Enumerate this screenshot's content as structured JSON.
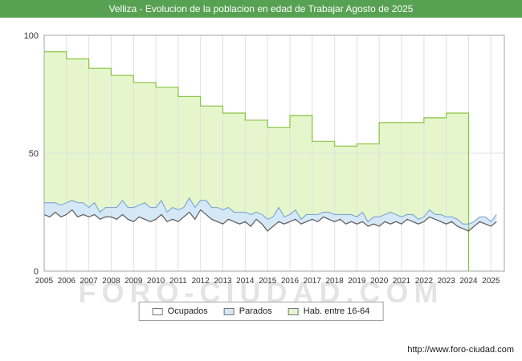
{
  "title": "Velliza - Evolucion de la poblacion en edad de Trabajar Agosto de 2025",
  "watermark": "FORO-CIUDAD.COM",
  "footer_url": "http://www.foro-ciudad.com",
  "colors": {
    "header_bg": "#56a152",
    "header_text": "#ffffff",
    "hab_fill": "#e6f6cc",
    "hab_stroke": "#86c440",
    "par_fill": "#d5e8f7",
    "par_stroke": "#6f9ecf",
    "ocu_fill": "#ffffff",
    "ocu_stroke": "#5a5a5a",
    "grid": "#e0e0e0",
    "frame": "#a6a6a6",
    "text": "#333333"
  },
  "legend": {
    "items": [
      {
        "label": "Ocupados",
        "fill": "#ffffff"
      },
      {
        "label": "Parados",
        "fill": "#d5e8f7"
      },
      {
        "label": "Hab. entre 16-64",
        "fill": "#e6f6cc"
      }
    ]
  },
  "chart_data": {
    "type": "area",
    "title": "Velliza - Evolucion de la poblacion en edad de Trabajar Agosto de 2025",
    "xlabel": "",
    "ylabel": "",
    "ylim": [
      0,
      100
    ],
    "yticks": [
      0,
      50,
      100
    ],
    "grid": true,
    "legend_position": "bottom",
    "x_years": [
      2005,
      2006,
      2007,
      2008,
      2009,
      2010,
      2011,
      2012,
      2013,
      2014,
      2015,
      2016,
      2017,
      2018,
      2019,
      2020,
      2021,
      2022,
      2023,
      2024,
      2025
    ],
    "series": [
      {
        "name": "Hab. entre 16-64",
        "kind": "step",
        "step_years": [
          2005,
          2006,
          2007,
          2008,
          2009,
          2010,
          2011,
          2012,
          2013,
          2014,
          2015,
          2016,
          2017,
          2018,
          2019,
          2020,
          2021,
          2022,
          2023
        ],
        "values": [
          93,
          90,
          86,
          83,
          80,
          78,
          74,
          70,
          67,
          64,
          61,
          66,
          55,
          53,
          54,
          63,
          63,
          65,
          67
        ],
        "ends_at": 2024
      },
      {
        "name": "Parados",
        "kind": "area",
        "stacked_on": "Ocupados",
        "x_start": 2005,
        "x_step": 0.25,
        "values": [
          5,
          6,
          4,
          5,
          5,
          4,
          6,
          5,
          4,
          5,
          3,
          4,
          4,
          5,
          6,
          5,
          6,
          5,
          7,
          6,
          5,
          6,
          4,
          5,
          5,
          4,
          6,
          5,
          4,
          6,
          5,
          6,
          6,
          5,
          4,
          5,
          4,
          5,
          3,
          4,
          5,
          4,
          6,
          3,
          3,
          4,
          2,
          3,
          2,
          3,
          2,
          3,
          3,
          2,
          4,
          3,
          3,
          4,
          2,
          3,
          4,
          3,
          5,
          3,
          3,
          2,
          3,
          2,
          2,
          3,
          2,
          3,
          3,
          2,
          3,
          2,
          3,
          2,
          2,
          3,
          2,
          3
        ]
      },
      {
        "name": "Ocupados",
        "kind": "area",
        "x_start": 2005,
        "x_step": 0.25,
        "values": [
          24,
          23,
          25,
          23,
          24,
          26,
          23,
          24,
          23,
          24,
          22,
          23,
          23,
          22,
          24,
          22,
          21,
          23,
          22,
          21,
          22,
          24,
          21,
          22,
          21,
          23,
          25,
          22,
          26,
          24,
          22,
          21,
          20,
          22,
          21,
          20,
          21,
          19,
          22,
          20,
          17,
          19,
          21,
          20,
          21,
          22,
          20,
          21,
          22,
          21,
          23,
          22,
          21,
          22,
          20,
          21,
          20,
          21,
          19,
          20,
          19,
          21,
          20,
          21,
          20,
          22,
          21,
          20,
          21,
          23,
          22,
          21,
          20,
          21,
          19,
          18,
          17,
          19,
          21,
          20,
          19,
          21
        ]
      }
    ]
  }
}
